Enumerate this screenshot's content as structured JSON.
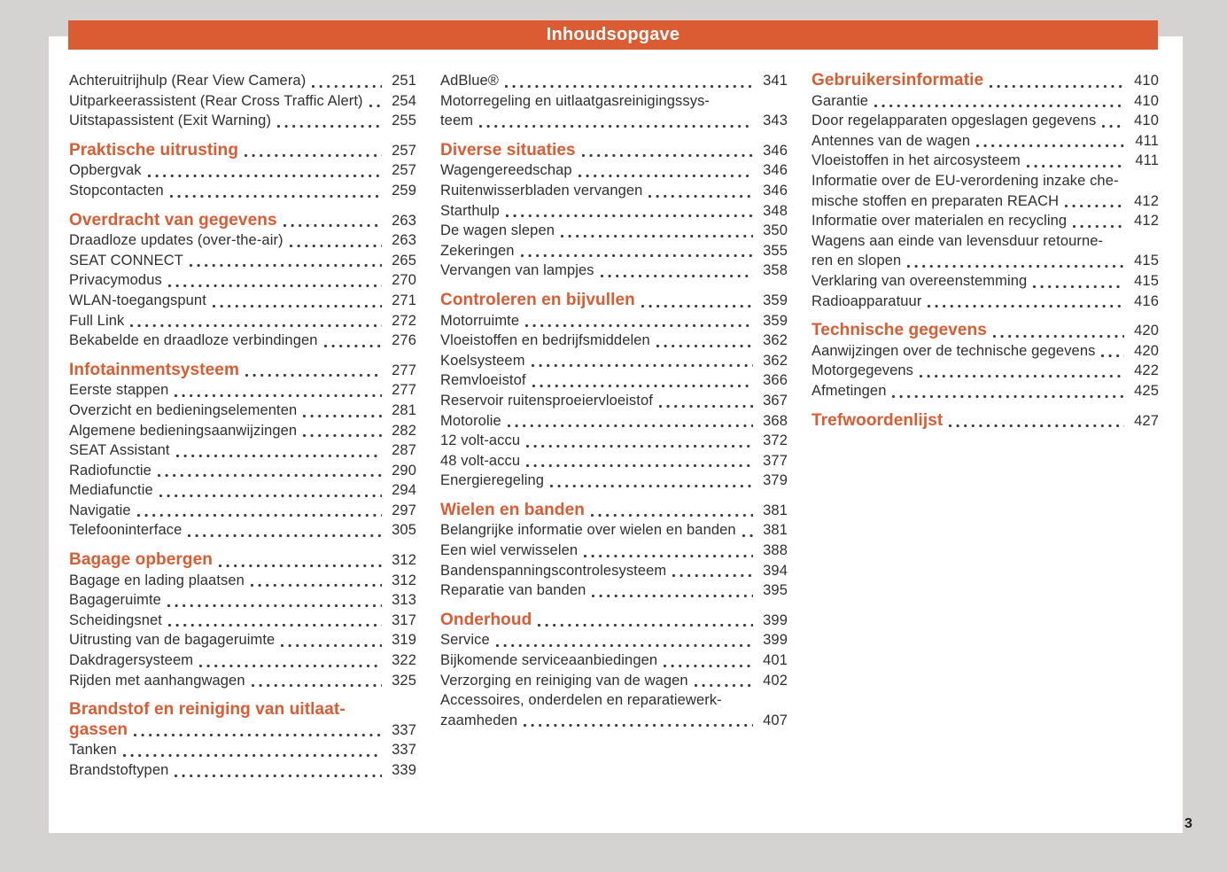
{
  "header": {
    "title": "Inhoudsopgave"
  },
  "folio": {
    "page_number": "3"
  },
  "colors": {
    "accent_orange": "#db5b32",
    "body_text": "#2f2f2f",
    "page_background": "#ffffff",
    "outer_background": "#d4d3d1"
  },
  "columns": [
    {
      "entries": [
        {
          "type": "item",
          "lines": [
            "Achteruitrijhulp (Rear View Camera)"
          ],
          "page": "251"
        },
        {
          "type": "item",
          "lines": [
            "Uitparkeerassistent (Rear Cross Traffic Alert)"
          ],
          "page": "254"
        },
        {
          "type": "item",
          "lines": [
            "Uitstapassistent (Exit Warning)"
          ],
          "page": "255"
        },
        {
          "type": "heading",
          "lines": [
            "Praktische uitrusting"
          ],
          "page": "257"
        },
        {
          "type": "item",
          "lines": [
            "Opbergvak"
          ],
          "page": "257"
        },
        {
          "type": "item",
          "lines": [
            "Stopcontacten"
          ],
          "page": "259"
        },
        {
          "type": "heading",
          "lines": [
            "Overdracht van gegevens"
          ],
          "page": "263"
        },
        {
          "type": "item",
          "lines": [
            "Draadloze updates (over-the-air)"
          ],
          "page": "263"
        },
        {
          "type": "item",
          "lines": [
            "SEAT CONNECT"
          ],
          "page": "265"
        },
        {
          "type": "item",
          "lines": [
            "Privacymodus"
          ],
          "page": "270"
        },
        {
          "type": "item",
          "lines": [
            "WLAN-toegangspunt"
          ],
          "page": "271"
        },
        {
          "type": "item",
          "lines": [
            "Full Link"
          ],
          "page": "272"
        },
        {
          "type": "item",
          "lines": [
            "Bekabelde en draadloze verbindingen"
          ],
          "page": "276"
        },
        {
          "type": "heading",
          "lines": [
            "Infotainmentsysteem"
          ],
          "page": "277"
        },
        {
          "type": "item",
          "lines": [
            "Eerste stappen"
          ],
          "page": "277"
        },
        {
          "type": "item",
          "lines": [
            "Overzicht en bedieningselementen"
          ],
          "page": "281"
        },
        {
          "type": "item",
          "lines": [
            "Algemene bedieningsaanwijzingen"
          ],
          "page": "282"
        },
        {
          "type": "item",
          "lines": [
            "SEAT Assistant"
          ],
          "page": "287"
        },
        {
          "type": "item",
          "lines": [
            "Radiofunctie"
          ],
          "page": "290"
        },
        {
          "type": "item",
          "lines": [
            "Mediafunctie"
          ],
          "page": "294"
        },
        {
          "type": "item",
          "lines": [
            "Navigatie"
          ],
          "page": "297"
        },
        {
          "type": "item",
          "lines": [
            "Telefooninterface"
          ],
          "page": "305"
        },
        {
          "type": "heading",
          "lines": [
            "Bagage opbergen"
          ],
          "page": "312"
        },
        {
          "type": "item",
          "lines": [
            "Bagage en lading plaatsen"
          ],
          "page": "312"
        },
        {
          "type": "item",
          "lines": [
            "Bagageruimte"
          ],
          "page": "313"
        },
        {
          "type": "item",
          "lines": [
            "Scheidingsnet"
          ],
          "page": "317"
        },
        {
          "type": "item",
          "lines": [
            "Uitrusting van de bagageruimte"
          ],
          "page": "319"
        },
        {
          "type": "item",
          "lines": [
            "Dakdragersysteem"
          ],
          "page": "322"
        },
        {
          "type": "item",
          "lines": [
            "Rijden met aanhangwagen"
          ],
          "page": "325"
        },
        {
          "type": "heading",
          "lines": [
            "Brandstof en reiniging van uitlaat-",
            "gassen"
          ],
          "page": "337"
        },
        {
          "type": "item",
          "lines": [
            "Tanken"
          ],
          "page": "337"
        },
        {
          "type": "item",
          "lines": [
            "Brandstoftypen"
          ],
          "page": "339"
        }
      ]
    },
    {
      "entries": [
        {
          "type": "item",
          "lines": [
            "AdBlue®"
          ],
          "page": "341"
        },
        {
          "type": "item",
          "lines": [
            "Motorregeling en uitlaatgasreinigingssys-",
            "teem"
          ],
          "page": "343"
        },
        {
          "type": "heading",
          "lines": [
            "Diverse situaties"
          ],
          "page": "346"
        },
        {
          "type": "item",
          "lines": [
            "Wagengereedschap"
          ],
          "page": "346"
        },
        {
          "type": "item",
          "lines": [
            "Ruitenwisserbladen vervangen"
          ],
          "page": "346"
        },
        {
          "type": "item",
          "lines": [
            "Starthulp"
          ],
          "page": "348"
        },
        {
          "type": "item",
          "lines": [
            "De wagen slepen"
          ],
          "page": "350"
        },
        {
          "type": "item",
          "lines": [
            "Zekeringen"
          ],
          "page": "355"
        },
        {
          "type": "item",
          "lines": [
            "Vervangen van lampjes"
          ],
          "page": "358"
        },
        {
          "type": "heading",
          "lines": [
            "Controleren en bijvullen"
          ],
          "page": "359"
        },
        {
          "type": "item",
          "lines": [
            "Motorruimte"
          ],
          "page": "359"
        },
        {
          "type": "item",
          "lines": [
            "Vloeistoffen en bedrijfsmiddelen"
          ],
          "page": "362"
        },
        {
          "type": "item",
          "lines": [
            "Koelsysteem"
          ],
          "page": "362"
        },
        {
          "type": "item",
          "lines": [
            "Remvloeistof"
          ],
          "page": "366"
        },
        {
          "type": "item",
          "lines": [
            "Reservoir ruitensproeiervloeistof"
          ],
          "page": "367"
        },
        {
          "type": "item",
          "lines": [
            "Motorolie"
          ],
          "page": "368"
        },
        {
          "type": "item",
          "lines": [
            "12 volt-accu"
          ],
          "page": "372"
        },
        {
          "type": "item",
          "lines": [
            "48 volt-accu"
          ],
          "page": "377"
        },
        {
          "type": "item",
          "lines": [
            "Energieregeling"
          ],
          "page": "379"
        },
        {
          "type": "heading",
          "lines": [
            "Wielen en banden"
          ],
          "page": "381"
        },
        {
          "type": "item",
          "lines": [
            "Belangrijke informatie over wielen en banden"
          ],
          "page": "381"
        },
        {
          "type": "item",
          "lines": [
            "Een wiel verwisselen"
          ],
          "page": "388"
        },
        {
          "type": "item",
          "lines": [
            "Bandenspanningscontrolesysteem"
          ],
          "page": "394"
        },
        {
          "type": "item",
          "lines": [
            "Reparatie van banden"
          ],
          "page": "395"
        },
        {
          "type": "heading",
          "lines": [
            "Onderhoud"
          ],
          "page": "399"
        },
        {
          "type": "item",
          "lines": [
            "Service"
          ],
          "page": "399"
        },
        {
          "type": "item",
          "lines": [
            "Bijkomende serviceaanbiedingen"
          ],
          "page": "401"
        },
        {
          "type": "item",
          "lines": [
            "Verzorging en reiniging van de wagen"
          ],
          "page": "402"
        },
        {
          "type": "item",
          "lines": [
            "Accessoires, onderdelen en reparatiewerk-",
            "zaamheden"
          ],
          "page": "407"
        }
      ]
    },
    {
      "entries": [
        {
          "type": "heading",
          "lines": [
            "Gebruikersinformatie"
          ],
          "page": "410"
        },
        {
          "type": "item",
          "lines": [
            "Garantie"
          ],
          "page": "410"
        },
        {
          "type": "item",
          "lines": [
            "Door regelapparaten opgeslagen gegevens"
          ],
          "page": "410"
        },
        {
          "type": "item",
          "lines": [
            "Antennes van de wagen"
          ],
          "page": "411"
        },
        {
          "type": "item",
          "lines": [
            "Vloeistoffen in het aircosysteem"
          ],
          "page": "411"
        },
        {
          "type": "item",
          "lines": [
            "Informatie over de EU-verordening inzake che-",
            "mische stoffen en preparaten REACH"
          ],
          "page": "412"
        },
        {
          "type": "item",
          "lines": [
            "Informatie over materialen en recycling"
          ],
          "page": "412"
        },
        {
          "type": "item",
          "lines": [
            "Wagens aan einde van levensduur retourne-",
            "ren en slopen"
          ],
          "page": "415"
        },
        {
          "type": "item",
          "lines": [
            "Verklaring van overeenstemming"
          ],
          "page": "415"
        },
        {
          "type": "item",
          "lines": [
            "Radioapparatuur"
          ],
          "page": "416"
        },
        {
          "type": "heading",
          "lines": [
            "Technische gegevens"
          ],
          "page": "420"
        },
        {
          "type": "item",
          "lines": [
            "Aanwijzingen over de technische gegevens"
          ],
          "page": "420"
        },
        {
          "type": "item",
          "lines": [
            "Motorgegevens"
          ],
          "page": "422"
        },
        {
          "type": "item",
          "lines": [
            "Afmetingen"
          ],
          "page": "425"
        },
        {
          "type": "heading",
          "lines": [
            "Trefwoordenlijst"
          ],
          "page": "427"
        }
      ]
    }
  ]
}
